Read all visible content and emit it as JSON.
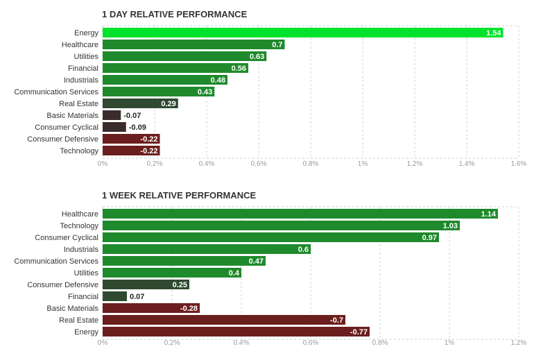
{
  "colors": {
    "top_positive": "#00e22b",
    "positive_strong": "#1f8a2c",
    "positive_weak": "#2f4a31",
    "negative_weak": "#3a2c2c",
    "negative_strong": "#6b1e1e",
    "grid": "#cfcfcf",
    "tick_text": "#9a9a9a",
    "label_text": "#333333"
  },
  "chart_data": [
    {
      "type": "bar",
      "orientation": "horizontal",
      "title": "1 DAY RELATIVE PERFORMANCE",
      "categories": [
        "Energy",
        "Healthcare",
        "Utilities",
        "Financial",
        "Industrials",
        "Communication Services",
        "Real Estate",
        "Basic Materials",
        "Consumer Cyclical",
        "Consumer Defensive",
        "Technology"
      ],
      "values": [
        1.54,
        0.7,
        0.63,
        0.56,
        0.48,
        0.43,
        0.29,
        -0.07,
        -0.09,
        -0.22,
        -0.22
      ],
      "value_labels": [
        "1.54",
        "0.7",
        "0.63",
        "0.56",
        "0.48",
        "0.43",
        "0.29",
        "-0.07",
        "-0.09",
        "-0.22",
        "-0.22"
      ],
      "xlim": [
        0,
        1.6
      ],
      "xticks": [
        "0%",
        "0.2%",
        "0.4%",
        "0.6%",
        "0.8%",
        "1%",
        "1.2%",
        "1.4%",
        "1.6%"
      ],
      "grid": true
    },
    {
      "type": "bar",
      "orientation": "horizontal",
      "title": "1 WEEK RELATIVE PERFORMANCE",
      "categories": [
        "Healthcare",
        "Technology",
        "Consumer Cyclical",
        "Industrials",
        "Communication Services",
        "Utilities",
        "Consumer Defensive",
        "Financial",
        "Basic Materials",
        "Real Estate",
        "Energy"
      ],
      "values": [
        1.14,
        1.03,
        0.97,
        0.6,
        0.47,
        0.4,
        0.25,
        0.07,
        -0.28,
        -0.7,
        -0.77
      ],
      "value_labels": [
        "1.14",
        "1.03",
        "0.97",
        "0.6",
        "0.47",
        "0.4",
        "0.25",
        "0.07",
        "-0.28",
        "-0.7",
        "-0.77"
      ],
      "xlim": [
        0,
        1.2
      ],
      "xticks": [
        "0%",
        "0.2%",
        "0.4%",
        "0.6%",
        "0.8%",
        "1%",
        "1.2%"
      ],
      "grid": true
    }
  ]
}
